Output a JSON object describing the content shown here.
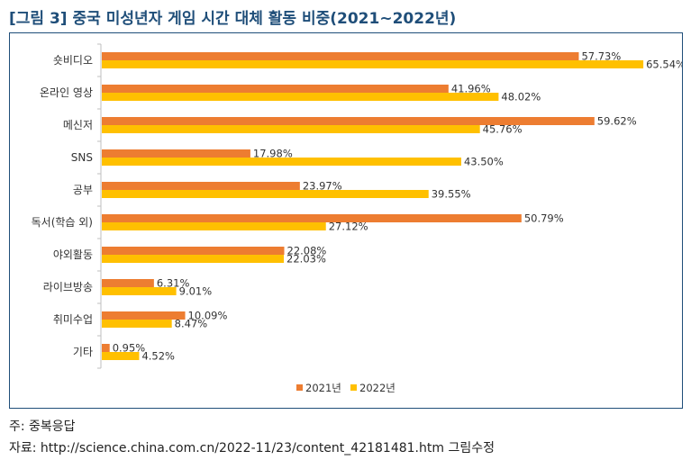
{
  "title_prefix": "[그림 3]",
  "title_text": "중국 미성년자 게임 시간 대체 활동 비중(2021~2022년)",
  "footnote": "주: 중복응답",
  "source": "자료: http://science.china.com.cn/2022-11/23/content_42181481.htm 그림수정",
  "colors": {
    "series_2021": "#ed7d31",
    "series_2022": "#ffc000",
    "frame": "#1f4e79",
    "title": "#1f4e79"
  },
  "chart_data": {
    "type": "bar",
    "orientation": "horizontal",
    "categories": [
      "숏비디오",
      "온라인 영상",
      "메신저",
      "SNS",
      "공부",
      "독서(학습 외)",
      "야외활동",
      "라이브방송",
      "취미수업",
      "기타"
    ],
    "series": [
      {
        "name": "2021년",
        "values": [
          57.73,
          41.96,
          59.62,
          17.98,
          23.97,
          50.79,
          22.08,
          6.31,
          10.09,
          0.95
        ]
      },
      {
        "name": "2022년",
        "values": [
          65.54,
          48.02,
          45.76,
          43.5,
          39.55,
          27.12,
          22.03,
          9.01,
          8.47,
          4.52
        ]
      }
    ],
    "data_labels": [
      [
        "57.73%",
        "41.96%",
        "59.62%",
        "17.98%",
        "23.97%",
        "50.79%",
        "22.08%",
        "6.31%",
        "10.09%",
        "0.95%"
      ],
      [
        "65.54%",
        "48.02%",
        "45.76%",
        "43.50%",
        "39.55%",
        "27.12%",
        "22.03%",
        "9.01%",
        "8.47%",
        "4.52%"
      ]
    ],
    "xlim": [
      0,
      70
    ],
    "grid": false,
    "legend": "bottom"
  }
}
